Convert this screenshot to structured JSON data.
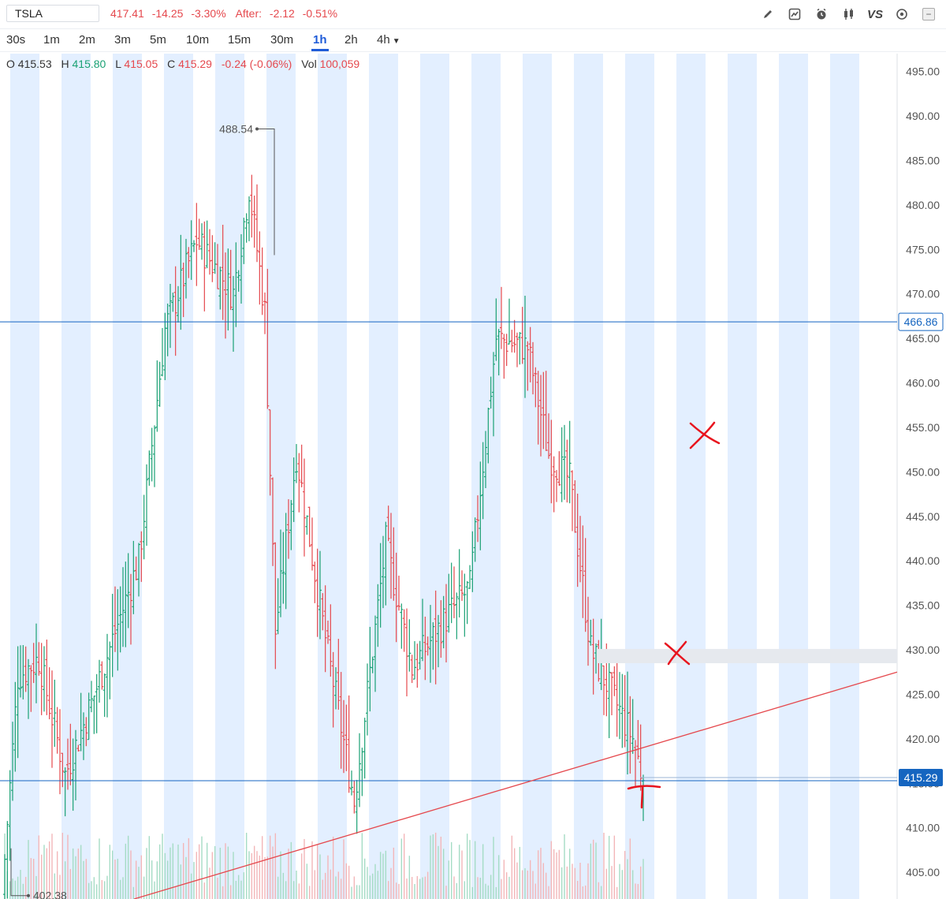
{
  "header": {
    "symbol": "TSLA",
    "last": "417.41",
    "change": "-14.25",
    "change_pct": "-3.30%",
    "after_label": "After:",
    "after_change": "-2.12",
    "after_pct": "-0.51%"
  },
  "toolbar_icons": [
    "pencil-icon",
    "chart-trend-icon",
    "alarm-icon",
    "candlestick-icon",
    "vs-compare-icon",
    "settings-icon",
    "minimize-icon"
  ],
  "toolbar_vs_label": "VS",
  "timeframes": [
    "30s",
    "1m",
    "2m",
    "3m",
    "5m",
    "10m",
    "15m",
    "30m",
    "1h",
    "2h",
    "4h"
  ],
  "active_timeframe": "1h",
  "ohlc": {
    "o_label": "O",
    "o": "415.53",
    "h_label": "H",
    "h": "415.80",
    "l_label": "L",
    "l": "415.05",
    "c_label": "C",
    "c": "415.29",
    "chg": "-0.24 (-0.06%)",
    "vol_label": "Vol",
    "vol": "100,059"
  },
  "colors": {
    "up": "#1aa174",
    "down": "#e5484d",
    "band": "#e3efff",
    "hline": "#1565c0",
    "accent": "#1e5bd8"
  },
  "chart_data": {
    "type": "ohlc",
    "interval": "1h",
    "ylim": [
      402,
      497
    ],
    "yticks": [
      405,
      410,
      415,
      420,
      425,
      430,
      435,
      440,
      445,
      450,
      455,
      460,
      465,
      470,
      475,
      480,
      485,
      490,
      495
    ],
    "price_labels": {
      "horizontal_line": "466.86",
      "last_price": "415.29"
    },
    "horizontal_levels": [
      466.86,
      415.29
    ],
    "zone": [
      428.5,
      430.1
    ],
    "trendline": {
      "from": 402,
      "to": 427.5
    },
    "high_marker": "488.54",
    "low_marker": "402.38",
    "session_price_path": [
      {
        "bars": 6,
        "from": 402.4,
        "to": 427
      },
      {
        "bars": 8,
        "from": 427,
        "to": 429
      },
      {
        "bars": 10,
        "from": 429,
        "to": 416
      },
      {
        "bars": 10,
        "from": 416,
        "to": 424
      },
      {
        "bars": 18,
        "from": 424,
        "to": 440
      },
      {
        "bars": 10,
        "from": 440,
        "to": 466
      },
      {
        "bars": 12,
        "from": 466,
        "to": 476
      },
      {
        "bars": 14,
        "from": 476,
        "to": 470
      },
      {
        "bars": 6,
        "from": 470,
        "to": 482
      },
      {
        "bars": 6,
        "from": 482,
        "to": 468
      },
      {
        "bars": 4,
        "from": 468,
        "to": 432
      },
      {
        "bars": 8,
        "from": 432,
        "to": 452
      },
      {
        "bars": 10,
        "from": 452,
        "to": 433
      },
      {
        "bars": 12,
        "from": 433,
        "to": 413
      },
      {
        "bars": 12,
        "from": 413,
        "to": 442
      },
      {
        "bars": 10,
        "from": 442,
        "to": 428
      },
      {
        "bars": 14,
        "from": 428,
        "to": 434
      },
      {
        "bars": 8,
        "from": 434,
        "to": 437
      },
      {
        "bars": 10,
        "from": 437,
        "to": 465
      },
      {
        "bars": 12,
        "from": 465,
        "to": 464
      },
      {
        "bars": 8,
        "from": 464,
        "to": 452
      },
      {
        "bars": 8,
        "from": 452,
        "to": 449
      },
      {
        "bars": 8,
        "from": 449,
        "to": 430
      },
      {
        "bars": 8,
        "from": 430,
        "to": 425
      },
      {
        "bars": 8,
        "from": 425,
        "to": 420
      },
      {
        "bars": 4,
        "from": 420,
        "to": 415.3
      }
    ]
  }
}
